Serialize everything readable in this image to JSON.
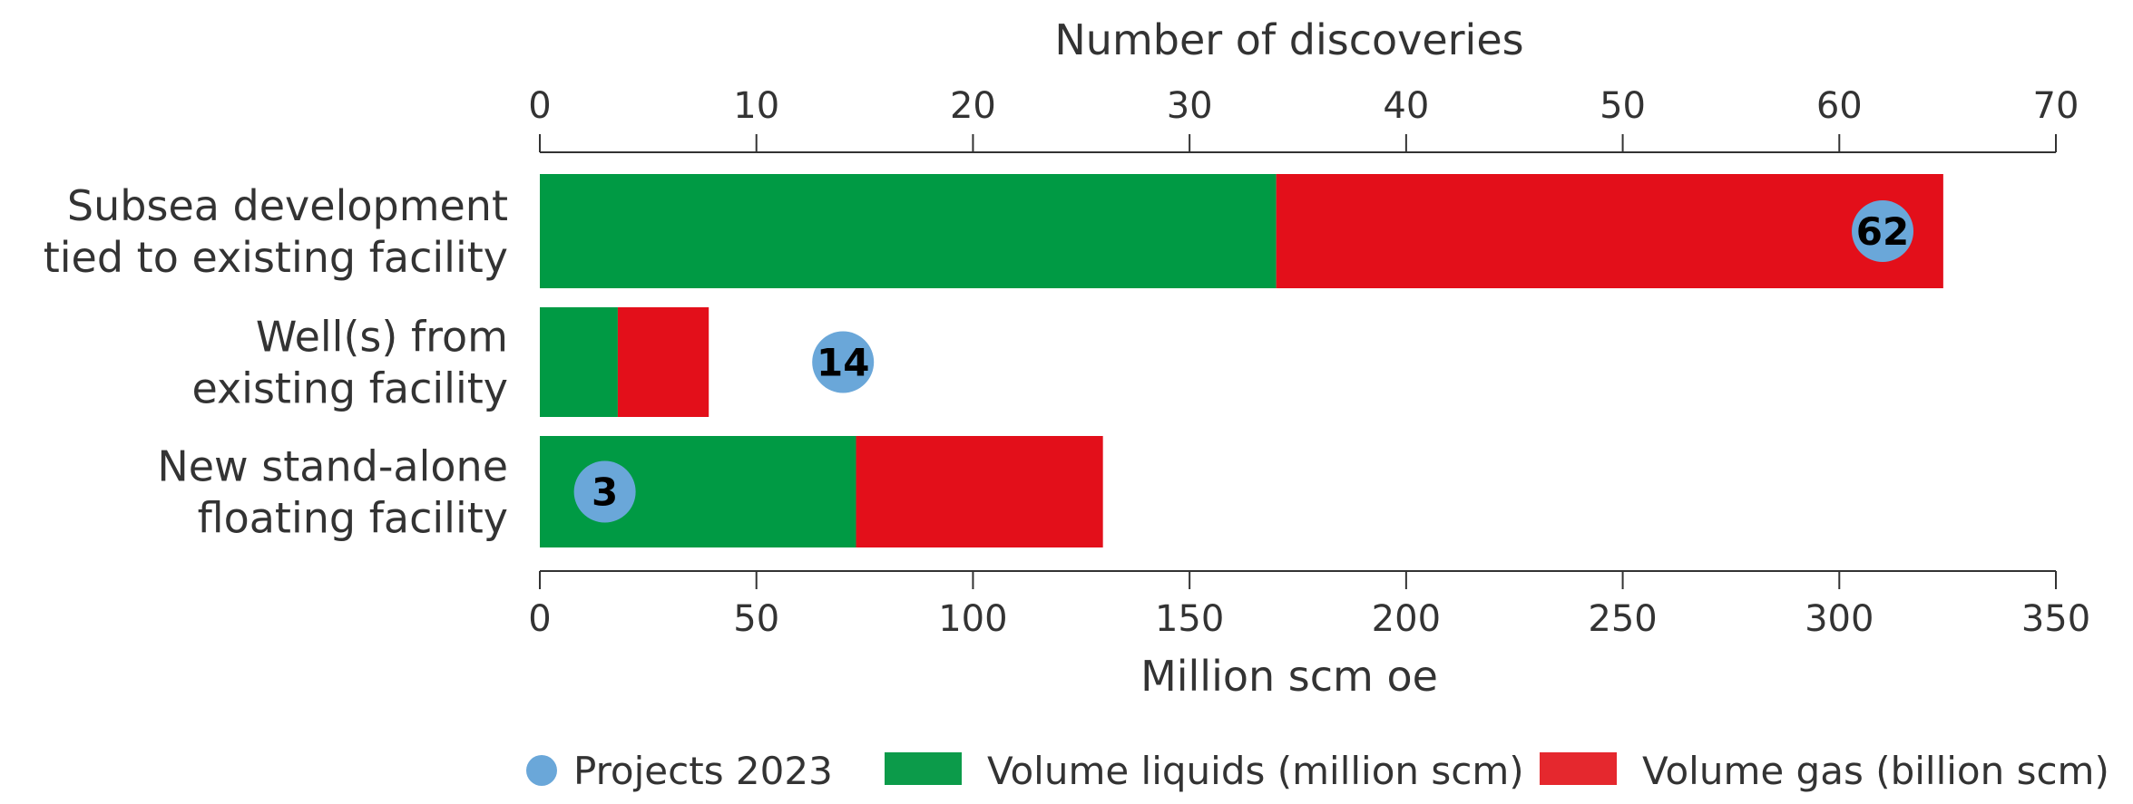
{
  "chart_data": {
    "type": "bar",
    "orientation": "horizontal",
    "stacked": true,
    "categories": [
      [
        "Subsea development",
        "tied to existing facility"
      ],
      [
        "Well(s) from",
        "existing facility"
      ],
      [
        "New stand-alone",
        "floating facility"
      ]
    ],
    "series": [
      {
        "name": "Volume liquids (million scm)",
        "color": "#009a44",
        "values": [
          170,
          18,
          73
        ]
      },
      {
        "name": "Volume gas (billion scm)",
        "color": "#e30f1a",
        "values": [
          154,
          21,
          57
        ]
      }
    ],
    "points": {
      "name": "Projects 2023",
      "color": "#6aa7d9",
      "values": [
        62,
        14,
        3
      ]
    },
    "xlabel": "Million scm oe",
    "xlim": [
      0,
      350
    ],
    "xticks": [
      0,
      50,
      100,
      150,
      200,
      250,
      300,
      350
    ],
    "x2label": "Number of discoveries",
    "x2lim": [
      0,
      70
    ],
    "x2ticks": [
      0,
      10,
      20,
      30,
      40,
      50,
      60,
      70
    ],
    "legend": "bottom",
    "grid": false
  }
}
